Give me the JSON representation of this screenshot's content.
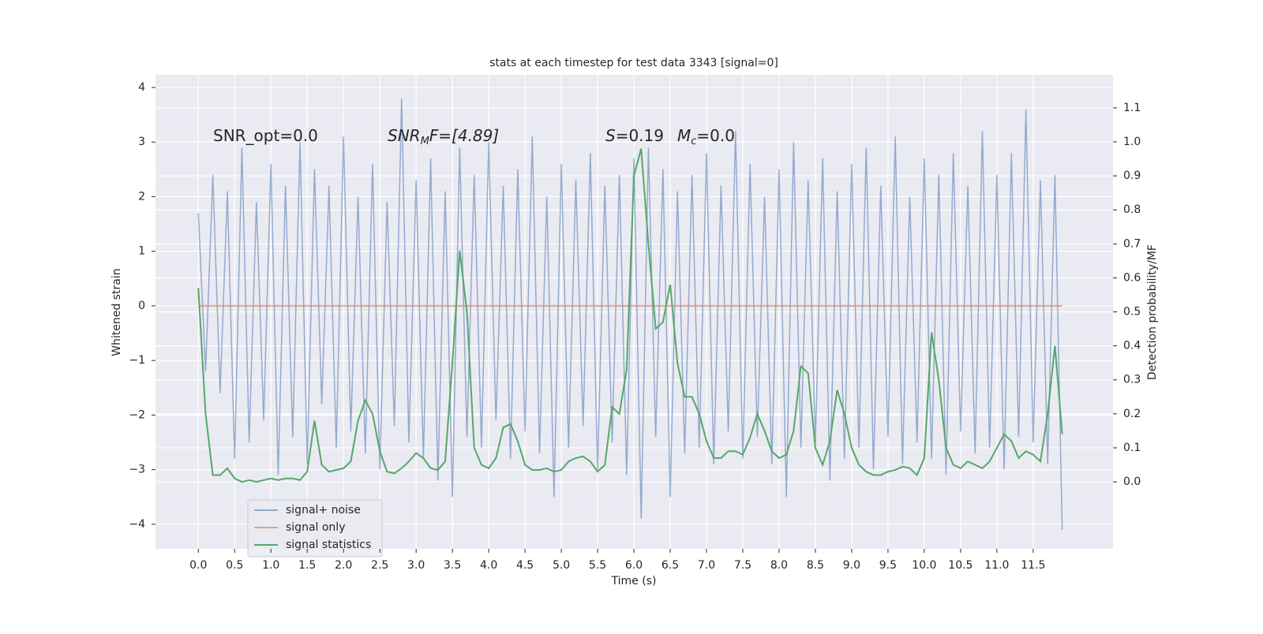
{
  "chart_data": {
    "type": "line",
    "title": "stats at each timestep for test data 3343 [signal=0]",
    "xlabel": "Time (s)",
    "ylabel": "Whitened strain",
    "y2label": "Detection probability/MF",
    "annotations": [
      [
        "SNR_opt=0.0"
      ],
      [
        "SNR",
        "M",
        "F=[4.89]"
      ],
      [
        "S",
        "=0.19"
      ],
      [
        "M",
        "c",
        "=0.0"
      ]
    ],
    "grid": true,
    "legend": "lower left",
    "xlim": [
      -0.59,
      12.6
    ],
    "ylim": [
      -4.45,
      4.23
    ],
    "y2lim": [
      -0.197,
      1.197
    ],
    "xticks": [
      {
        "value": 0,
        "label": "0.0"
      },
      {
        "value": 0.5,
        "label": "0.5"
      },
      {
        "value": 1,
        "label": "1.0"
      },
      {
        "value": 1.5,
        "label": "1.5"
      },
      {
        "value": 2,
        "label": "2.0"
      },
      {
        "value": 2.5,
        "label": "2.5"
      },
      {
        "value": 3,
        "label": "3.0"
      },
      {
        "value": 3.5,
        "label": "3.5"
      },
      {
        "value": 4,
        "label": "4.0"
      },
      {
        "value": 4.5,
        "label": "4.5"
      },
      {
        "value": 5,
        "label": "5.0"
      },
      {
        "value": 5.5,
        "label": "5.5"
      },
      {
        "value": 6,
        "label": "6.0"
      },
      {
        "value": 6.5,
        "label": "6.5"
      },
      {
        "value": 7,
        "label": "7.0"
      },
      {
        "value": 7.5,
        "label": "7.5"
      },
      {
        "value": 8,
        "label": "8.0"
      },
      {
        "value": 8.5,
        "label": "8.5"
      },
      {
        "value": 9,
        "label": "9.0"
      },
      {
        "value": 9.5,
        "label": "9.5"
      },
      {
        "value": 10,
        "label": "10.0"
      },
      {
        "value": 10.5,
        "label": "10.5"
      },
      {
        "value": 11,
        "label": "11.0"
      },
      {
        "value": 11.5,
        "label": "11.5"
      }
    ],
    "yticks": [
      {
        "value": -4,
        "label": "−4"
      },
      {
        "value": -3,
        "label": "−3"
      },
      {
        "value": -2,
        "label": "−2"
      },
      {
        "value": -1,
        "label": "−1"
      },
      0,
      1,
      2,
      3,
      4
    ],
    "y2ticks": [
      {
        "value": 0,
        "label": "0.0"
      },
      {
        "value": 0.1,
        "label": "0.1"
      },
      {
        "value": 0.2,
        "label": "0.2"
      },
      {
        "value": 0.3,
        "label": "0.3"
      },
      {
        "value": 0.4,
        "label": "0.4"
      },
      {
        "value": 0.5,
        "label": "0.5"
      },
      {
        "value": 0.6,
        "label": "0.6"
      },
      {
        "value": 0.7,
        "label": "0.7"
      },
      {
        "value": 0.8,
        "label": "0.8"
      },
      {
        "value": 0.9,
        "label": "0.9"
      },
      {
        "value": 1,
        "label": "1.0"
      },
      {
        "value": 1.1,
        "label": "1.1"
      }
    ],
    "x": [
      0,
      0.1,
      0.2,
      0.3,
      0.4,
      0.5,
      0.6,
      0.7,
      0.8,
      0.9,
      1,
      1.1,
      1.2,
      1.3,
      1.4,
      1.5,
      1.6,
      1.7,
      1.8,
      1.9,
      2,
      2.1,
      2.2,
      2.3,
      2.4,
      2.5,
      2.6,
      2.7,
      2.8,
      2.9,
      3,
      3.1,
      3.2,
      3.3,
      3.4,
      3.5,
      3.6,
      3.7,
      3.8,
      3.9,
      4,
      4.1,
      4.2,
      4.3,
      4.4,
      4.5,
      4.6,
      4.7,
      4.8,
      4.9,
      5,
      5.1,
      5.2,
      5.3,
      5.4,
      5.5,
      5.6,
      5.7,
      5.8,
      5.9,
      6,
      6.1,
      6.2,
      6.3,
      6.4,
      6.5,
      6.6,
      6.7,
      6.8,
      6.9,
      7,
      7.1,
      7.2,
      7.3,
      7.4,
      7.5,
      7.6,
      7.7,
      7.8,
      7.9,
      8,
      8.1,
      8.2,
      8.3,
      8.4,
      8.5,
      8.6,
      8.7,
      8.8,
      8.9,
      9,
      9.1,
      9.2,
      9.3,
      9.4,
      9.5,
      9.6,
      9.7,
      9.8,
      9.9,
      10,
      10.1,
      10.2,
      10.3,
      10.4,
      10.5,
      10.6,
      10.7,
      10.8,
      10.9,
      11,
      11.1,
      11.2,
      11.3,
      11.4,
      11.5,
      11.6,
      11.7,
      11.8,
      11.9
    ],
    "series": [
      {
        "name": "signal+ noise",
        "color": "#4c72b0",
        "values": [
          1.7,
          -1.2,
          2.4,
          -1.6,
          2.1,
          -2.8,
          2.9,
          -2.5,
          1.9,
          -2.1,
          2.6,
          -3.1,
          2.2,
          -2.4,
          3.0,
          -2.9,
          2.5,
          -1.8,
          2.2,
          -2.6,
          3.1,
          -2.3,
          2.0,
          -2.7,
          2.6,
          -3.0,
          1.9,
          -2.2,
          3.8,
          -2.5,
          2.3,
          -2.8,
          2.7,
          -3.2,
          2.1,
          -3.5,
          2.9,
          -2.4,
          2.4,
          -2.6,
          3.0,
          -2.1,
          2.2,
          -2.8,
          2.5,
          -2.3,
          3.1,
          -2.7,
          2.0,
          -3.5,
          2.6,
          -2.6,
          2.3,
          -2.2,
          2.8,
          -3.0,
          2.2,
          -2.5,
          2.4,
          -3.1,
          2.7,
          -3.9,
          2.9,
          -2.4,
          2.5,
          -3.5,
          2.1,
          -2.7,
          2.4,
          -2.6,
          2.8,
          -2.9,
          2.2,
          -2.3,
          3.2,
          -2.8,
          2.6,
          -2.4,
          2.0,
          -2.9,
          2.5,
          -3.5,
          3.0,
          -2.6,
          2.3,
          -2.5,
          2.7,
          -3.2,
          2.1,
          -2.8,
          2.6,
          -2.6,
          2.9,
          -3.0,
          2.2,
          -2.4,
          3.1,
          -2.9,
          2.0,
          -2.5,
          2.7,
          -2.8,
          2.4,
          -3.1,
          2.8,
          -2.3,
          2.2,
          -2.7,
          3.2,
          -2.6,
          2.4,
          -3.0,
          2.8,
          -2.4,
          3.6,
          -2.5,
          2.3,
          -2.9,
          2.4,
          -4.1
        ]
      },
      {
        "name": "signal only",
        "color": "#dd8452",
        "values": [
          0,
          0,
          0,
          0,
          0,
          0,
          0,
          0,
          0,
          0,
          0,
          0,
          0,
          0,
          0,
          0,
          0,
          0,
          0,
          0,
          0,
          0,
          0,
          0,
          0,
          0,
          0,
          0,
          0,
          0,
          0,
          0,
          0,
          0,
          0,
          0,
          0,
          0,
          0,
          0,
          0,
          0,
          0,
          0,
          0,
          0,
          0,
          0,
          0,
          0,
          0,
          0,
          0,
          0,
          0,
          0,
          0,
          0,
          0,
          0,
          0,
          0,
          0,
          0,
          0,
          0,
          0,
          0,
          0,
          0,
          0,
          0,
          0,
          0,
          0,
          0,
          0,
          0,
          0,
          0,
          0,
          0,
          0,
          0,
          0,
          0,
          0,
          0,
          0,
          0,
          0,
          0,
          0,
          0,
          0,
          0,
          0,
          0,
          0,
          0,
          0,
          0,
          0,
          0,
          0,
          0,
          0,
          0,
          0,
          0,
          0,
          0,
          0,
          0,
          0,
          0,
          0,
          0,
          0,
          0
        ]
      },
      {
        "name": "signal statistics",
        "color": "#55a868",
        "axis": "y2",
        "values": [
          0.57,
          0.2,
          0.02,
          0.02,
          0.04,
          0.01,
          0.0,
          0.005,
          0.0,
          0.005,
          0.01,
          0.005,
          0.01,
          0.01,
          0.005,
          0.03,
          0.18,
          0.05,
          0.03,
          0.035,
          0.04,
          0.06,
          0.18,
          0.24,
          0.2,
          0.09,
          0.03,
          0.025,
          0.04,
          0.06,
          0.085,
          0.07,
          0.04,
          0.035,
          0.06,
          0.35,
          0.68,
          0.5,
          0.1,
          0.05,
          0.04,
          0.07,
          0.16,
          0.17,
          0.12,
          0.05,
          0.035,
          0.035,
          0.04,
          0.03,
          0.035,
          0.06,
          0.07,
          0.075,
          0.06,
          0.03,
          0.05,
          0.22,
          0.2,
          0.33,
          0.9,
          0.98,
          0.7,
          0.45,
          0.47,
          0.58,
          0.35,
          0.25,
          0.25,
          0.2,
          0.12,
          0.07,
          0.07,
          0.09,
          0.09,
          0.08,
          0.13,
          0.2,
          0.15,
          0.09,
          0.07,
          0.08,
          0.15,
          0.34,
          0.32,
          0.1,
          0.05,
          0.12,
          0.27,
          0.2,
          0.1,
          0.05,
          0.03,
          0.02,
          0.02,
          0.03,
          0.035,
          0.045,
          0.04,
          0.02,
          0.07,
          0.44,
          0.3,
          0.1,
          0.05,
          0.04,
          0.06,
          0.05,
          0.04,
          0.06,
          0.1,
          0.14,
          0.12,
          0.07,
          0.09,
          0.08,
          0.06,
          0.2,
          0.4,
          0.14
        ]
      }
    ]
  }
}
